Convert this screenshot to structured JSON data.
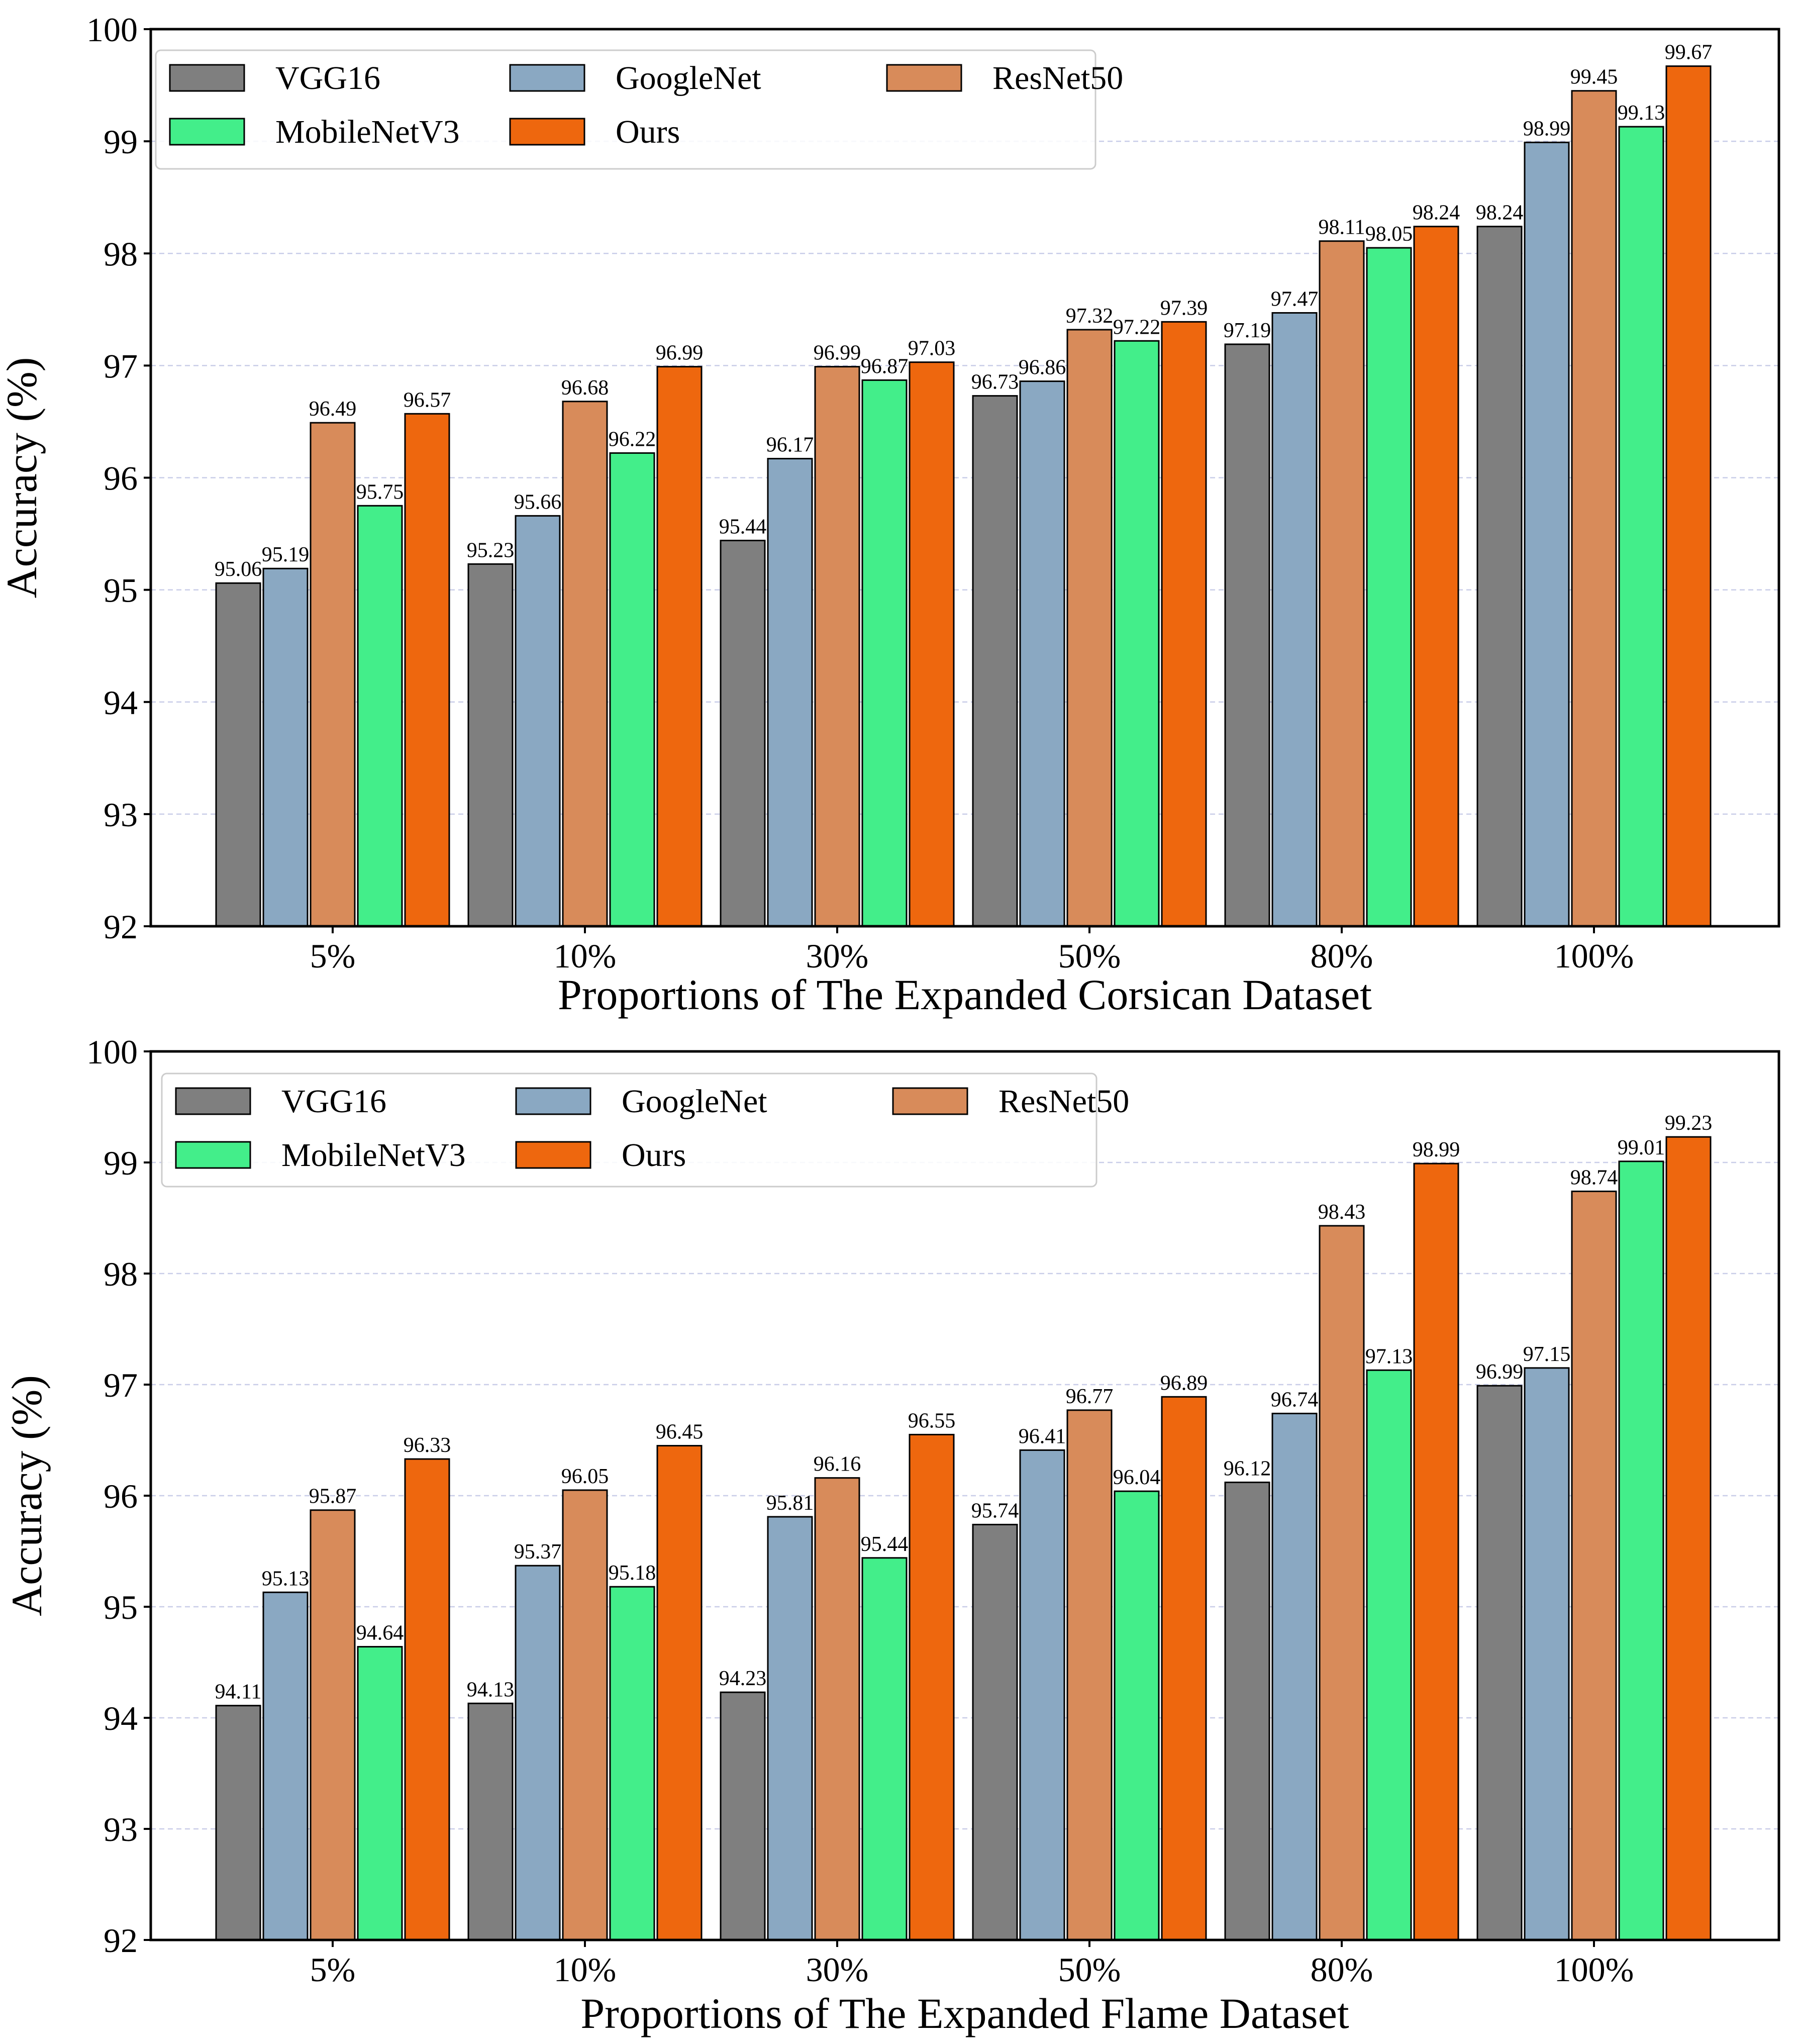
{
  "colors": {
    "VGG16": "#7f7f7f",
    "GoogleNet": "#8aa8c2",
    "ResNet50": "#d88b5a",
    "MobileNetV3": "#43ee8a",
    "Ours": "#ee670e",
    "grid": "#c9cde8",
    "axis": "#000000"
  },
  "chart_data": [
    {
      "type": "bar",
      "title": "",
      "xlabel": "Proportions of The Expanded Corsican Dataset",
      "ylabel": "Accuracy (%)",
      "ylim": [
        92,
        100
      ],
      "yticks": [
        "92",
        "93",
        "94",
        "95",
        "96",
        "97",
        "98",
        "99",
        "100"
      ],
      "categories": [
        "5%",
        "10%",
        "30%",
        "50%",
        "80%",
        "100%"
      ],
      "grid": "horizontal dashed",
      "legend_position": "top-left",
      "series": [
        {
          "name": "VGG16",
          "values": [
            95.06,
            95.23,
            95.44,
            96.73,
            97.19,
            98.24
          ],
          "labels": [
            "95.06",
            "95.23",
            "95.44",
            "96.73",
            "97.19",
            "98.24"
          ]
        },
        {
          "name": "GoogleNet",
          "values": [
            95.19,
            95.66,
            96.17,
            96.86,
            97.47,
            98.99
          ],
          "labels": [
            "95.19",
            "95.66",
            "96.17",
            "96.86",
            "97.47",
            "98.99"
          ]
        },
        {
          "name": "ResNet50",
          "values": [
            96.49,
            96.68,
            96.99,
            97.32,
            98.11,
            99.45
          ],
          "labels": [
            "96.49",
            "96.68",
            "96.99",
            "97.32",
            "98.11",
            "99.45"
          ]
        },
        {
          "name": "MobileNetV3",
          "values": [
            95.75,
            96.22,
            96.87,
            97.22,
            98.05,
            99.13
          ],
          "labels": [
            "95.75",
            "96.22",
            "96.87",
            "97.22",
            "98.05",
            "99.13"
          ]
        },
        {
          "name": "Ours",
          "values": [
            96.57,
            96.99,
            97.03,
            97.39,
            98.24,
            99.67
          ],
          "labels": [
            "96.57",
            "96.99",
            "97.03",
            "97.39",
            "98.24",
            "99.67"
          ]
        }
      ]
    },
    {
      "type": "bar",
      "title": "",
      "xlabel": "Proportions of The Expanded Flame Dataset",
      "ylabel": "Accuracy (%)",
      "ylim": [
        92,
        100
      ],
      "yticks": [
        "92",
        "93",
        "94",
        "95",
        "96",
        "97",
        "98",
        "99",
        "100"
      ],
      "categories": [
        "5%",
        "10%",
        "30%",
        "50%",
        "80%",
        "100%"
      ],
      "grid": "horizontal dashed",
      "legend_position": "top-left",
      "series": [
        {
          "name": "VGG16",
          "values": [
            94.11,
            94.13,
            94.23,
            95.74,
            96.12,
            96.99
          ],
          "labels": [
            "94.11",
            "94.13",
            "94.23",
            "95.74",
            "96.12",
            "96.99"
          ]
        },
        {
          "name": "GoogleNet",
          "values": [
            95.13,
            95.37,
            95.81,
            96.41,
            96.74,
            97.15
          ],
          "labels": [
            "95.13",
            "95.37",
            "95.81",
            "96.41",
            "96.74",
            "97.15"
          ]
        },
        {
          "name": "ResNet50",
          "values": [
            95.87,
            96.05,
            96.16,
            96.77,
            98.43,
            98.74
          ],
          "labels": [
            "95.87",
            "96.05",
            "96.16",
            "96.77",
            "98.43",
            "98.74"
          ]
        },
        {
          "name": "MobileNetV3",
          "values": [
            94.64,
            95.18,
            95.44,
            96.04,
            97.13,
            99.01
          ],
          "labels": [
            "94.64",
            "95.18",
            "95.44",
            "96.04",
            "97.13",
            "99.01"
          ]
        },
        {
          "name": "Ours",
          "values": [
            96.33,
            96.45,
            96.55,
            96.89,
            98.99,
            99.23
          ],
          "labels": [
            "96.33",
            "96.45",
            "96.55",
            "96.89",
            "98.99",
            "99.23"
          ]
        }
      ]
    }
  ]
}
